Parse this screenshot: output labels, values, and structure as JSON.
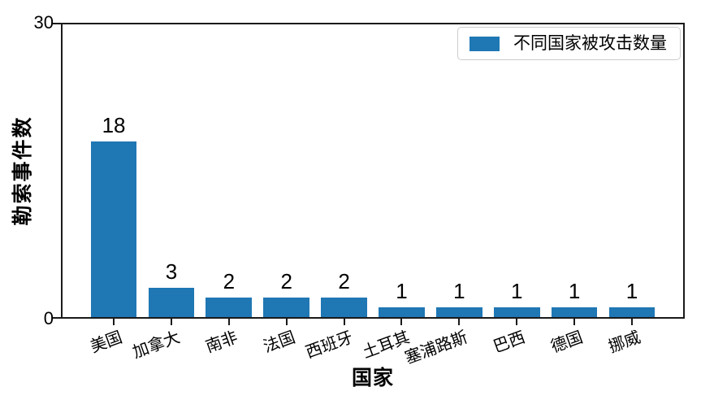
{
  "figure": {
    "background": "#ffffff",
    "text_color": "#000000",
    "spine_color": "#1a1a1a"
  },
  "chart_data": {
    "type": "bar",
    "title": "",
    "categories": [
      "美国",
      "加拿大",
      "南非",
      "法国",
      "西班牙",
      "土耳其",
      "塞浦路斯",
      "巴西",
      "德国",
      "挪威"
    ],
    "values": [
      18,
      3,
      2,
      2,
      2,
      1,
      1,
      1,
      1,
      1
    ],
    "bar_labels": [
      "18",
      "3",
      "2",
      "2",
      "2",
      "1",
      "1",
      "1",
      "1",
      "1"
    ],
    "xlabel": "国家",
    "ylabel": "勒索事件数",
    "ylim": [
      0,
      30
    ],
    "yticks": [
      0,
      30
    ],
    "ytick_labels": [
      "0",
      "30"
    ],
    "bar_color": "#1f77b4",
    "bar_width_fraction": 0.8,
    "xtick_rotation_deg": 20,
    "grid": false,
    "legend": {
      "position": "upper-right",
      "entries": [
        {
          "label": "不同国家被攻击数量",
          "color": "#1f77b4"
        }
      ]
    }
  }
}
